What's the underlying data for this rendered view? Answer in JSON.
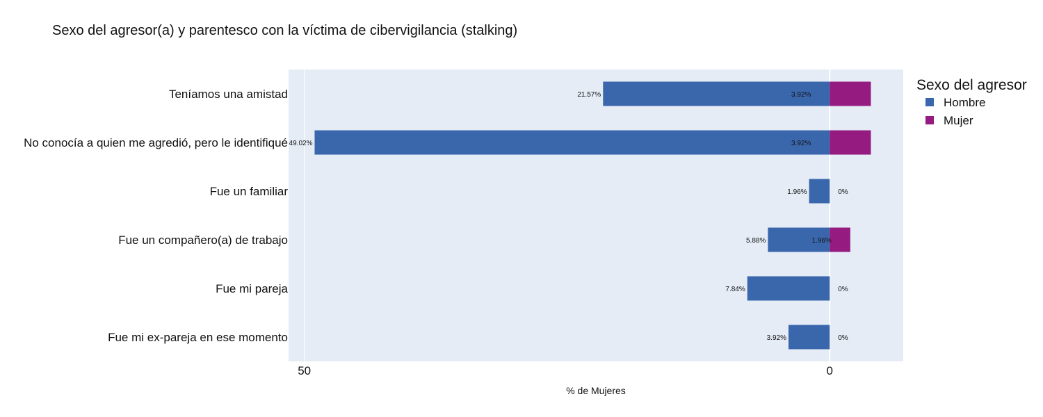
{
  "chart_data": {
    "type": "bar",
    "orientation": "horizontal",
    "title": "Sexo del agresor(a) y parentesco con la víctima de cibervigilancia (stalking)",
    "xlabel": "% de Mujeres",
    "ylabel": "",
    "xlim": [
      51.5,
      -7
    ],
    "xticks": [
      {
        "value": 50,
        "label": "50"
      },
      {
        "value": 0,
        "label": "0"
      }
    ],
    "categories": [
      "Teníamos una amistad",
      "No conocía a quien me agredió, pero le identifiqué",
      "Fue un familiar",
      "Fue un compañero(a) de trabajo",
      "Fue mi pareja",
      "Fue mi ex-pareja en ese momento"
    ],
    "series": [
      {
        "name": "Hombre",
        "color": "#3a67ac",
        "values": [
          21.57,
          49.02,
          1.96,
          5.88,
          7.84,
          3.92
        ],
        "labels": [
          "21.57%",
          "49.02%",
          "1.96%",
          "5.88%",
          "7.84%",
          "3.92%"
        ]
      },
      {
        "name": "Mujer",
        "color": "#951b81",
        "values": [
          3.92,
          3.92,
          0,
          1.96,
          0,
          0
        ],
        "labels": [
          "3.92%",
          "3.92%",
          "0%",
          "1.96%",
          "0%",
          "0%"
        ]
      }
    ],
    "legend": {
      "title": "Sexo del agresor",
      "position": "top-right"
    },
    "grid": true,
    "plot_background": "#e5ecf6"
  }
}
